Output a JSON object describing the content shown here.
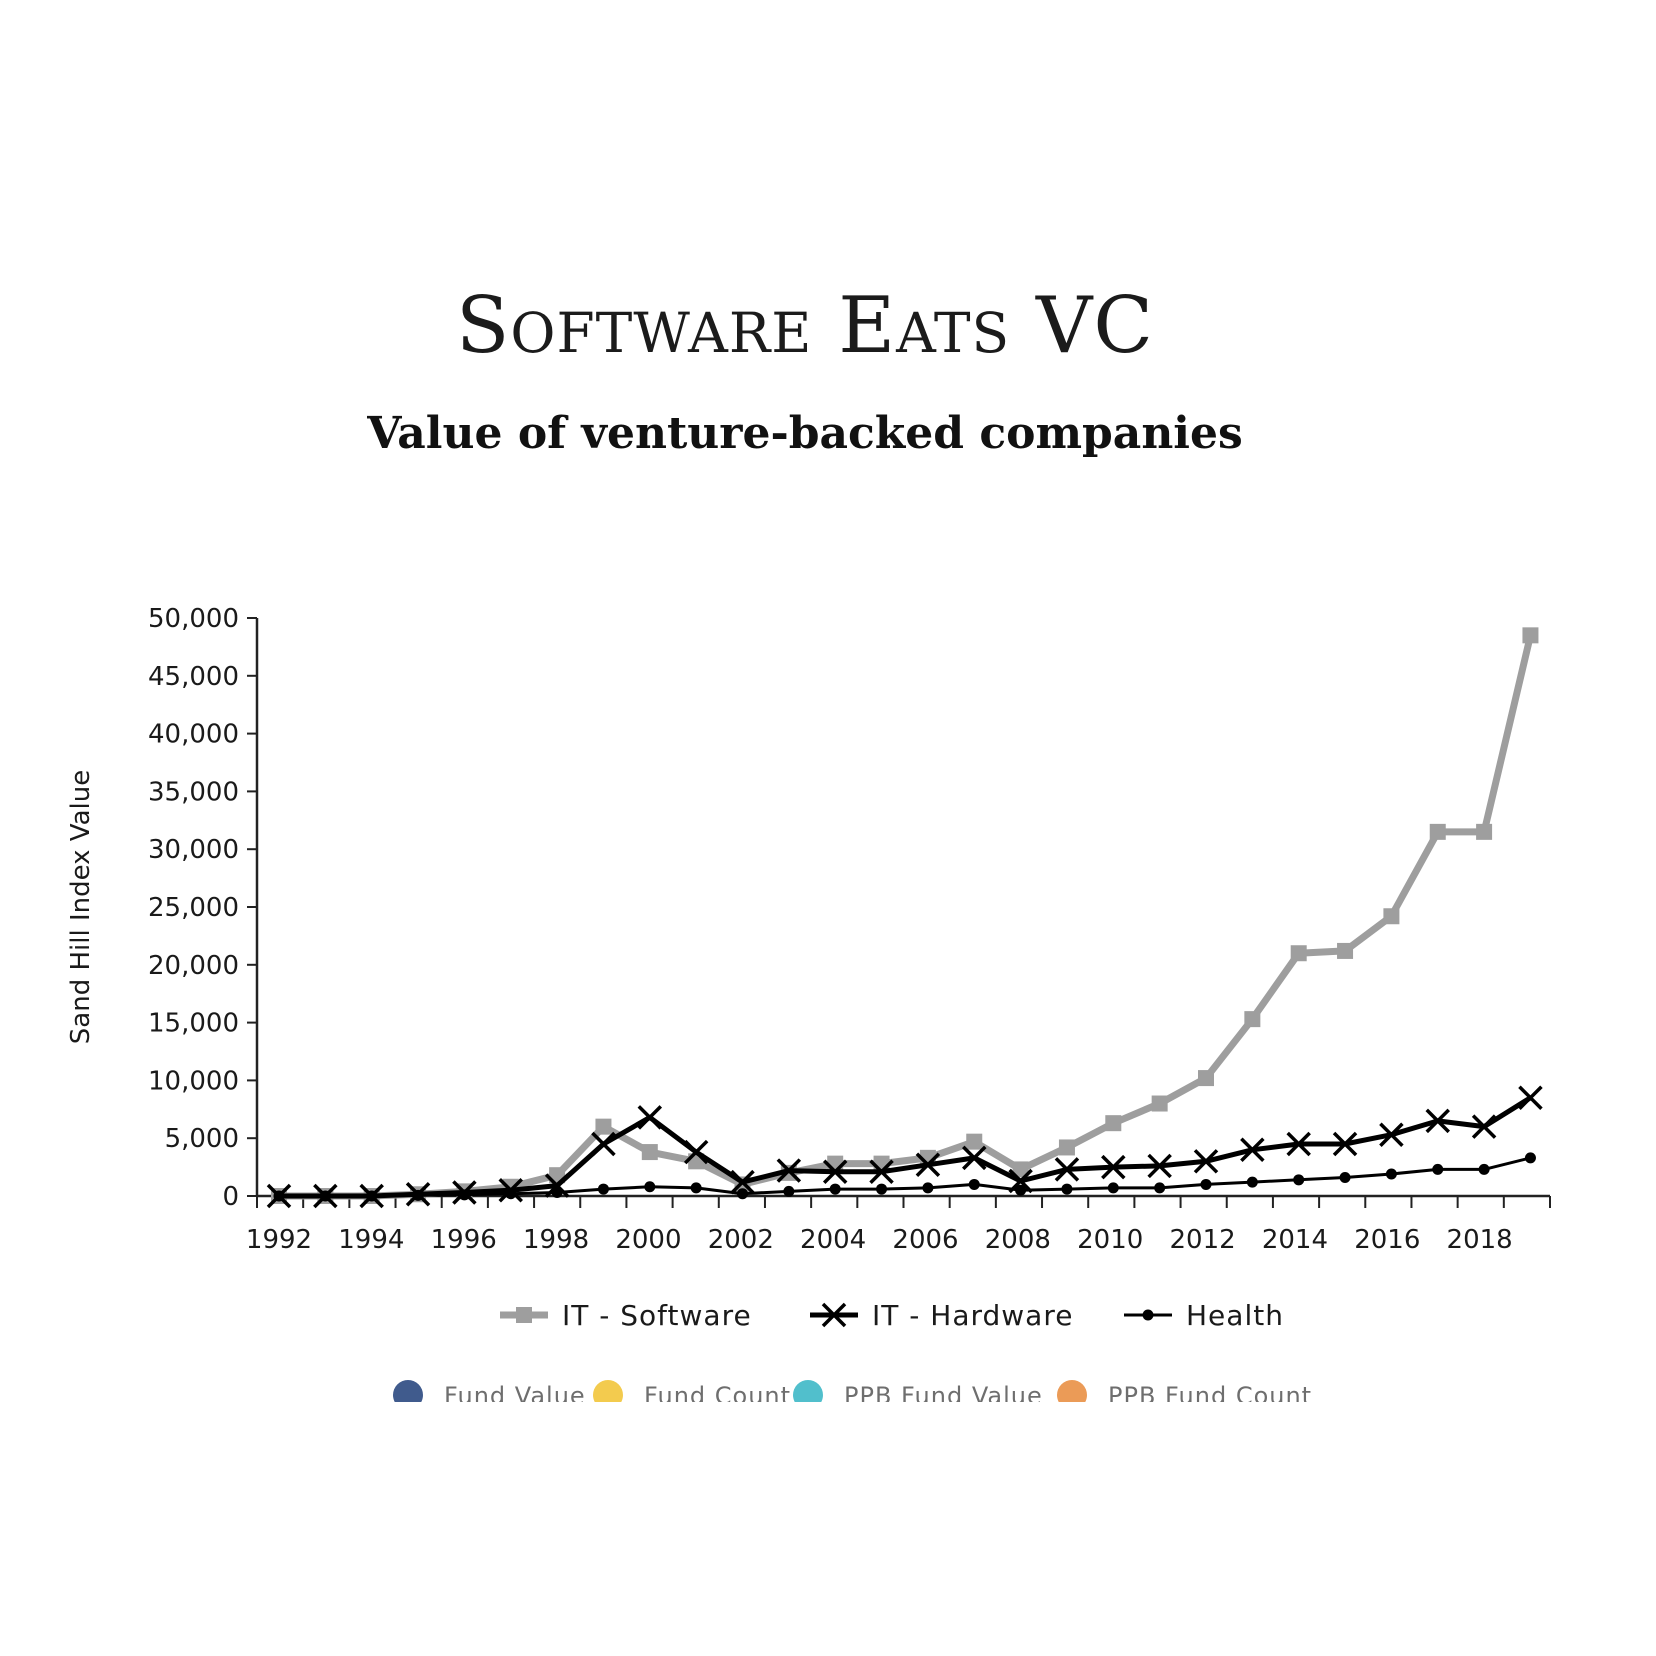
{
  "chart_data": {
    "type": "line",
    "title": "Software Eats VC",
    "subtitle": "Value of venture-backed companies",
    "xlabel": "",
    "ylabel": "Sand Hill Index Value",
    "ylim": [
      0,
      50000
    ],
    "y_ticks": [
      0,
      5000,
      10000,
      15000,
      20000,
      25000,
      30000,
      35000,
      40000,
      45000,
      50000
    ],
    "y_tick_labels": [
      "0",
      "5,000",
      "10,000",
      "15,000",
      "20,000",
      "25,000",
      "30,000",
      "35,000",
      "40,000",
      "45,000",
      "50,000"
    ],
    "x_tick_labels": [
      "1992",
      "1994",
      "1996",
      "1998",
      "2000",
      "2002",
      "2004",
      "2006",
      "2008",
      "2010",
      "2012",
      "2014",
      "2016",
      "2018"
    ],
    "x": [
      "1992",
      "1993",
      "1994",
      "1995",
      "1996",
      "1997",
      "1998",
      "1999",
      "2000",
      "2001",
      "2002",
      "2003",
      "2004",
      "2005",
      "2006",
      "2007",
      "2008",
      "2009",
      "2010",
      "2011",
      "2012",
      "2013",
      "2014",
      "2015",
      "2016",
      "2017",
      "2018",
      "2019"
    ],
    "grid": false,
    "legend_position": "bottom",
    "series": [
      {
        "name": "IT - Software",
        "color": "#9e9e9e",
        "marker": "square",
        "values": [
          0,
          0,
          0,
          150,
          400,
          800,
          1800,
          6000,
          3800,
          3000,
          1000,
          2000,
          2800,
          2800,
          3300,
          4700,
          2300,
          4200,
          6300,
          8000,
          10200,
          15300,
          21000,
          21200,
          24200,
          31500,
          31500,
          48500
        ]
      },
      {
        "name": "IT - Hardware",
        "color": "#000000",
        "marker": "x",
        "values": [
          0,
          0,
          0,
          150,
          300,
          500,
          900,
          4500,
          6800,
          3800,
          1200,
          2200,
          2100,
          2100,
          2700,
          3300,
          1300,
          2300,
          2500,
          2600,
          3000,
          4000,
          4500,
          4500,
          5300,
          6500,
          6000,
          8500
        ]
      },
      {
        "name": "Health",
        "color": "#000000",
        "marker": "dot",
        "values": [
          0,
          0,
          0,
          50,
          100,
          200,
          300,
          600,
          800,
          700,
          200,
          400,
          600,
          600,
          700,
          1000,
          500,
          600,
          700,
          700,
          1000,
          1200,
          1400,
          1600,
          1900,
          2300,
          2300,
          3300
        ]
      }
    ],
    "faded_legend_entries": [
      "Fund Value",
      "Fund Count",
      "PPB Fund Value",
      "PPB Fund Count"
    ],
    "faded_legend_colors": [
      "#1f3f7a",
      "#f2c230",
      "#33b5c4",
      "#e88a3a"
    ]
  }
}
